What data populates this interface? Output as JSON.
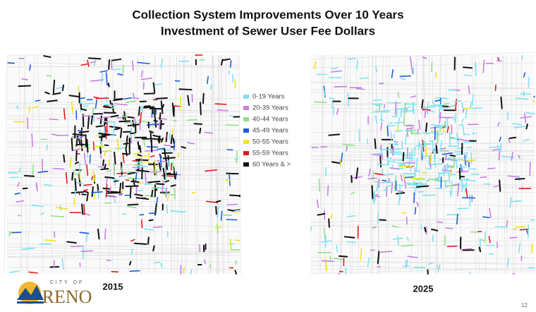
{
  "title_lines": [
    "Collection System Improvements Over 10 Years",
    "Investment of Sewer User Fee Dollars"
  ],
  "legend": [
    {
      "label": "0-19 Years",
      "color": "#7fe3f2"
    },
    {
      "label": "20-39 Years",
      "color": "#c77fe8"
    },
    {
      "label": "40-44 Years",
      "color": "#8fe08a"
    },
    {
      "label": "45-49 Years",
      "color": "#1a5fd8"
    },
    {
      "label": "50-55 Years",
      "color": "#f2e21c"
    },
    {
      "label": "55-59 Years",
      "color": "#e01b1b"
    },
    {
      "label": "60 Years & >",
      "color": "#111111"
    }
  ],
  "maps": [
    {
      "label": "2015"
    },
    {
      "label": "2025"
    }
  ],
  "logo": {
    "top": "CITY OF",
    "name": "RENO"
  },
  "page_number": "12"
}
